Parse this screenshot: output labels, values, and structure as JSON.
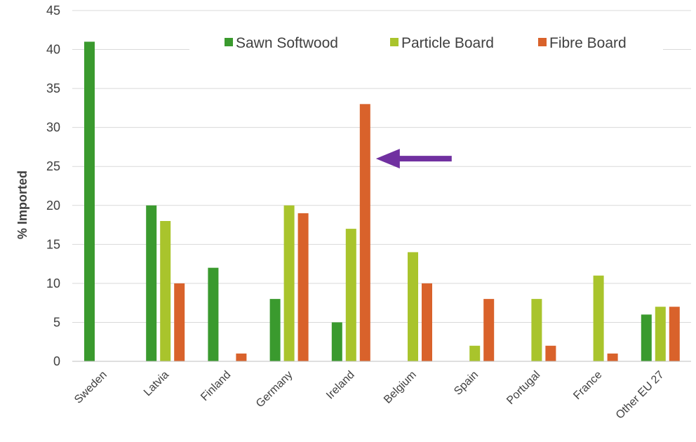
{
  "chart_data": {
    "type": "bar",
    "title": "",
    "xlabel": "",
    "ylabel": "% Imported",
    "ylim": [
      0,
      45
    ],
    "yticks": [
      0,
      5,
      10,
      15,
      20,
      25,
      30,
      35,
      40,
      45
    ],
    "grid": true,
    "legend_placement": "top-right",
    "categories": [
      "Sweden",
      "Latvia",
      "Finland",
      "Germany",
      "Ireland",
      "Belgium",
      "Spain",
      "Portugal",
      "France",
      "Other EU 27"
    ],
    "series": [
      {
        "name": "Sawn Softwood",
        "color": "#3a9a2e",
        "values": [
          41,
          20,
          12,
          8,
          5,
          0,
          0,
          0,
          0,
          6
        ]
      },
      {
        "name": "Particle Board",
        "color": "#a9c42c",
        "values": [
          0,
          18,
          0,
          20,
          17,
          14,
          2,
          8,
          11,
          7
        ]
      },
      {
        "name": "Fibre Board",
        "color": "#d9622b",
        "values": [
          0,
          10,
          1,
          19,
          33,
          10,
          8,
          2,
          1,
          7
        ]
      }
    ],
    "annotations": [
      {
        "type": "arrow",
        "color": "#7030a0",
        "points_to": {
          "category": "Ireland",
          "series": "Fibre Board",
          "value": 26
        }
      }
    ]
  }
}
